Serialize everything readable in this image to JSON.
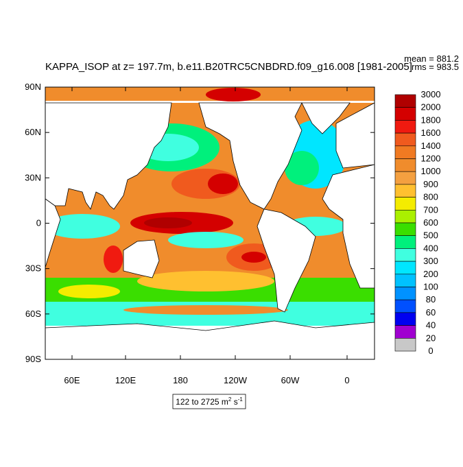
{
  "header": {
    "title": "KAPPA_ISOP at z= 197.7m, b.e11.B20TRC5CNBDRD.f09_g16.008 [1981-2005]",
    "mean": "mean = 881.2",
    "rms": "rms = 983.5"
  },
  "y_axis_labels": [
    "90N",
    "60N",
    "30N",
    "0",
    "30S",
    "60S",
    "90S"
  ],
  "x_axis_labels": [
    "60E",
    "120E",
    "180",
    "120W",
    "60W",
    "0"
  ],
  "colorbar": {
    "labels": [
      3000,
      2000,
      1800,
      1600,
      1400,
      1200,
      1000,
      900,
      800,
      700,
      600,
      500,
      400,
      300,
      200,
      100,
      80,
      60,
      40,
      20,
      0
    ],
    "colors": [
      "#b00000",
      "#d40000",
      "#f01a10",
      "#f05a1e",
      "#f07a22",
      "#f08c2c",
      "#f4a040",
      "#ffc030",
      "#f4ec00",
      "#aaf000",
      "#3ade00",
      "#00f07c",
      "#40ffe0",
      "#00e6ff",
      "#00c2ff",
      "#0092ff",
      "#0050ff",
      "#0000f0",
      "#a000d0",
      "#e000e0",
      "#c8c8c8"
    ]
  },
  "range_label": {
    "text": "122 to 2725 m",
    "sup1": "2",
    "mid": " s",
    "sup2": "-1"
  }
}
